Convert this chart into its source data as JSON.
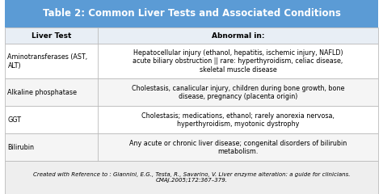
{
  "title": "Table 2: Common Liver Tests and Associated Conditions",
  "title_bg": "#5b9bd5",
  "title_color": "#ffffff",
  "title_fontsize": 8.5,
  "header": [
    "Liver Test",
    "Abnormal in:"
  ],
  "header_fontsize": 6.5,
  "header_bg": "#e8eef5",
  "rows": [
    [
      "Aminotransferases (AST,\nALT)",
      "Hepatocellular injury (ethanol, hepatitis, ischemic injury, NAFLD)\nacute biliary obstruction || rare: hyperthyroidism, celiac disease,\nskeletal muscle disease"
    ],
    [
      "Alkaline phosphatase",
      "Cholestasis, canalicular injury, children during bone growth, bone\ndisease, pregnancy (placenta origin)"
    ],
    [
      "GGT",
      "Cholestasis; medications, ethanol; rarely anorexia nervosa,\nhyperthyroidism, myotonic dystrophy"
    ],
    [
      "Bilirubin",
      "Any acute or chronic liver disease; congenital disorders of bilirubin\nmetabolism."
    ]
  ],
  "row_fontsize": 5.8,
  "footer": "Created with Reference to : Giannini, E.G., Testa, R., Savarino, V. Liver enzyme alteration: a guide for clinicians.\nCMAJ.2005;172:367–379.",
  "footer_fontsize": 5.0,
  "row_bg_colors": [
    "#ffffff",
    "#f5f5f5",
    "#ffffff",
    "#f5f5f5"
  ],
  "border_color": "#bbbbbb",
  "text_color": "#000000",
  "footer_bg": "#eeeeee",
  "col_split": 0.255
}
